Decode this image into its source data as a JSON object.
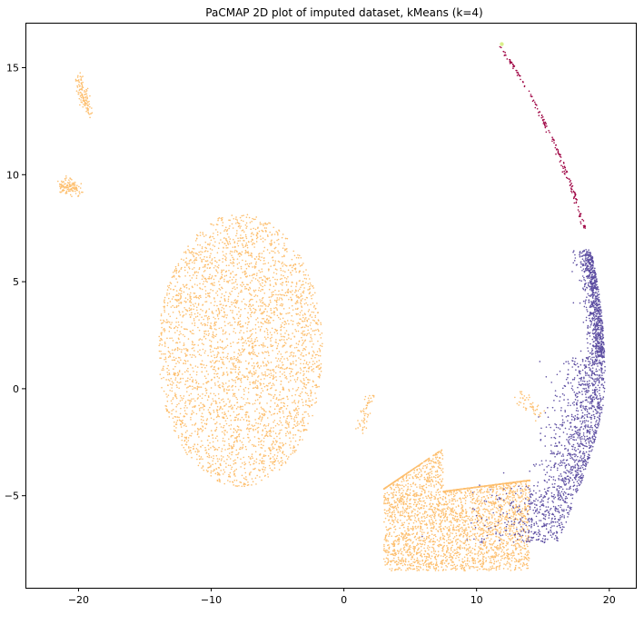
{
  "chart_data": {
    "type": "scatter",
    "title": "PaCMAP 2D plot of imputed dataset, kMeans (k=4)",
    "xlabel": "",
    "ylabel": "",
    "xlim": [
      -24,
      22
    ],
    "ylim": [
      -9.3,
      17.1
    ],
    "xticks": [
      -20,
      -10,
      0,
      10,
      20
    ],
    "yticks": [
      -5,
      0,
      5,
      10,
      15
    ],
    "xtick_labels": [
      "−20",
      "−10",
      "0",
      "10",
      "20"
    ],
    "ytick_labels": [
      "−5",
      "0",
      "5",
      "10",
      "15"
    ],
    "grid": false,
    "legend": false,
    "marker_size": "small",
    "colors": {
      "orange": "#fdbf6f",
      "purple": "#5e4fa2",
      "crimson": "#9e0142",
      "pale_green": "#d9ef8b"
    },
    "series": [
      {
        "color": "#fdbf6f",
        "regions": [
          {
            "shape": "ellipse",
            "center": [
              -7.8,
              1.8
            ],
            "radius": [
              6.2,
              6.4
            ],
            "density": "dense"
          },
          {
            "shape": "blob",
            "x_range": [
              3,
              14
            ],
            "y_range": [
              -8.5,
              -2.8
            ],
            "density": "dense"
          },
          {
            "shape": "streak",
            "from": [
              -20,
              14.5
            ],
            "to": [
              -19.2,
              12.9
            ],
            "density": "medium"
          },
          {
            "shape": "streak",
            "from": [
              -21.3,
              9.5
            ],
            "to": [
              -20.0,
              9.3
            ],
            "density": "medium"
          },
          {
            "shape": "streak",
            "from": [
              1.2,
              -1.8
            ],
            "to": [
              2.2,
              -0.2
            ],
            "density": "sparse"
          },
          {
            "shape": "streak",
            "from": [
              13.2,
              -0.4
            ],
            "to": [
              14.8,
              -1.2
            ],
            "density": "sparse"
          }
        ]
      },
      {
        "color": "#5e4fa2",
        "regions": [
          {
            "shape": "arc",
            "y_range": [
              -7.2,
              6.5
            ],
            "density": "dense"
          }
        ]
      },
      {
        "color": "#9e0142",
        "regions": [
          {
            "shape": "arc",
            "y_range": [
              7.5,
              16.0
            ],
            "density": "thin"
          }
        ]
      },
      {
        "color": "#d9ef8b",
        "regions": [
          {
            "shape": "point",
            "center": [
              11.9,
              16.1
            ],
            "density": "single"
          }
        ]
      }
    ]
  }
}
